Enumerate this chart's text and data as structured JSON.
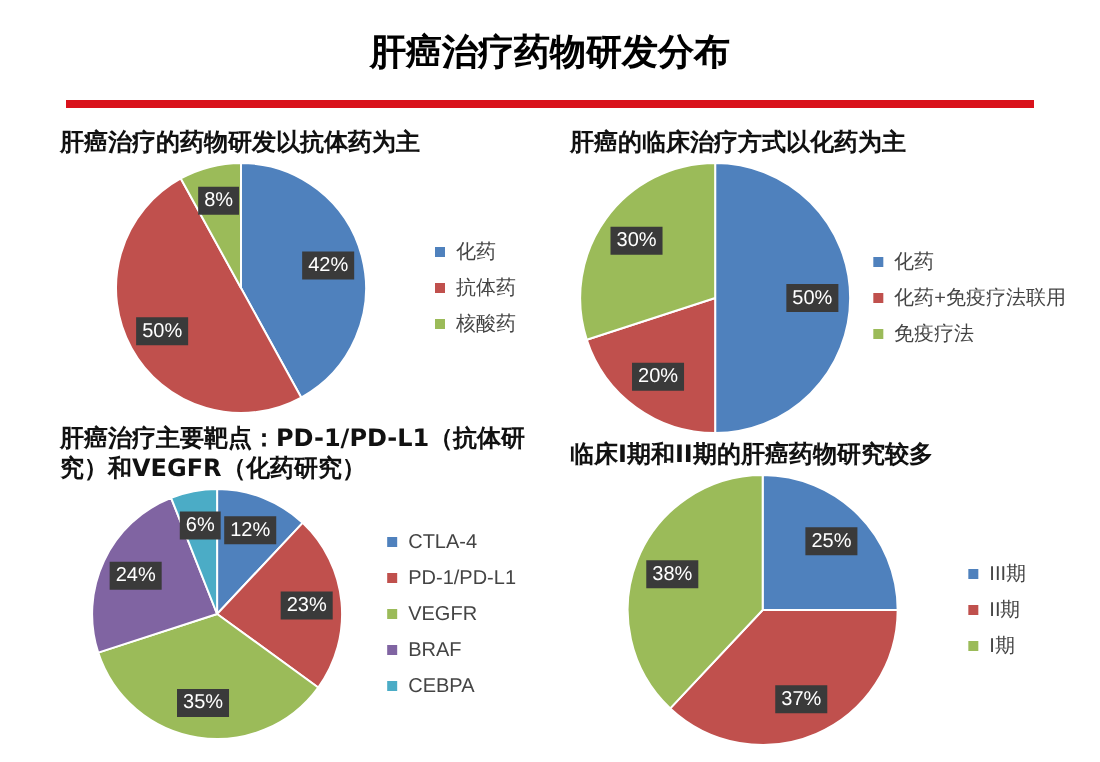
{
  "chart_data": [
    {
      "type": "other",
      "title": "肝癌治疗药物研发分布"
    },
    {
      "type": "pie",
      "title": "肝癌治疗的药物研发以抗体药为主",
      "categories": [
        "化药",
        "抗体药",
        "核酸药"
      ],
      "values": [
        42,
        50,
        8
      ],
      "colors": [
        "#4f81bd",
        "#c0504d",
        "#9bbb59"
      ],
      "value_labels": [
        "42%",
        "50%",
        "8%"
      ],
      "legend": "right"
    },
    {
      "type": "pie",
      "title": "肝癌的临床治疗方式以化药为主",
      "categories": [
        "化药",
        "化药+免疫疗法联用",
        "免疫疗法"
      ],
      "values": [
        50,
        20,
        30
      ],
      "colors": [
        "#4f81bd",
        "#c0504d",
        "#9bbb59"
      ],
      "value_labels": [
        "50%",
        "20%",
        "30%"
      ],
      "legend": "right"
    },
    {
      "type": "pie",
      "title": "肝癌治疗主要靶点：PD-1/PD-L1（抗体研究）和VEGFR（化药研究）",
      "categories": [
        "CTLA-4",
        "PD-1/PD-L1",
        "VEGFR",
        "BRAF",
        "CEBPA"
      ],
      "values": [
        12,
        23,
        35,
        24,
        6
      ],
      "colors": [
        "#4f81bd",
        "#c0504d",
        "#9bbb59",
        "#8064a2",
        "#4bacc6"
      ],
      "value_labels": [
        "12%",
        "23%",
        "35%",
        "24%",
        "6%"
      ],
      "legend": "right"
    },
    {
      "type": "pie",
      "title": "临床I期和II期的肝癌药物研究较多",
      "categories": [
        "III期",
        "II期",
        "I期"
      ],
      "values": [
        25,
        37,
        38
      ],
      "colors": [
        "#4f81bd",
        "#c0504d",
        "#9bbb59"
      ],
      "value_labels": [
        "25%",
        "37%",
        "38%"
      ],
      "legend": "right"
    }
  ]
}
